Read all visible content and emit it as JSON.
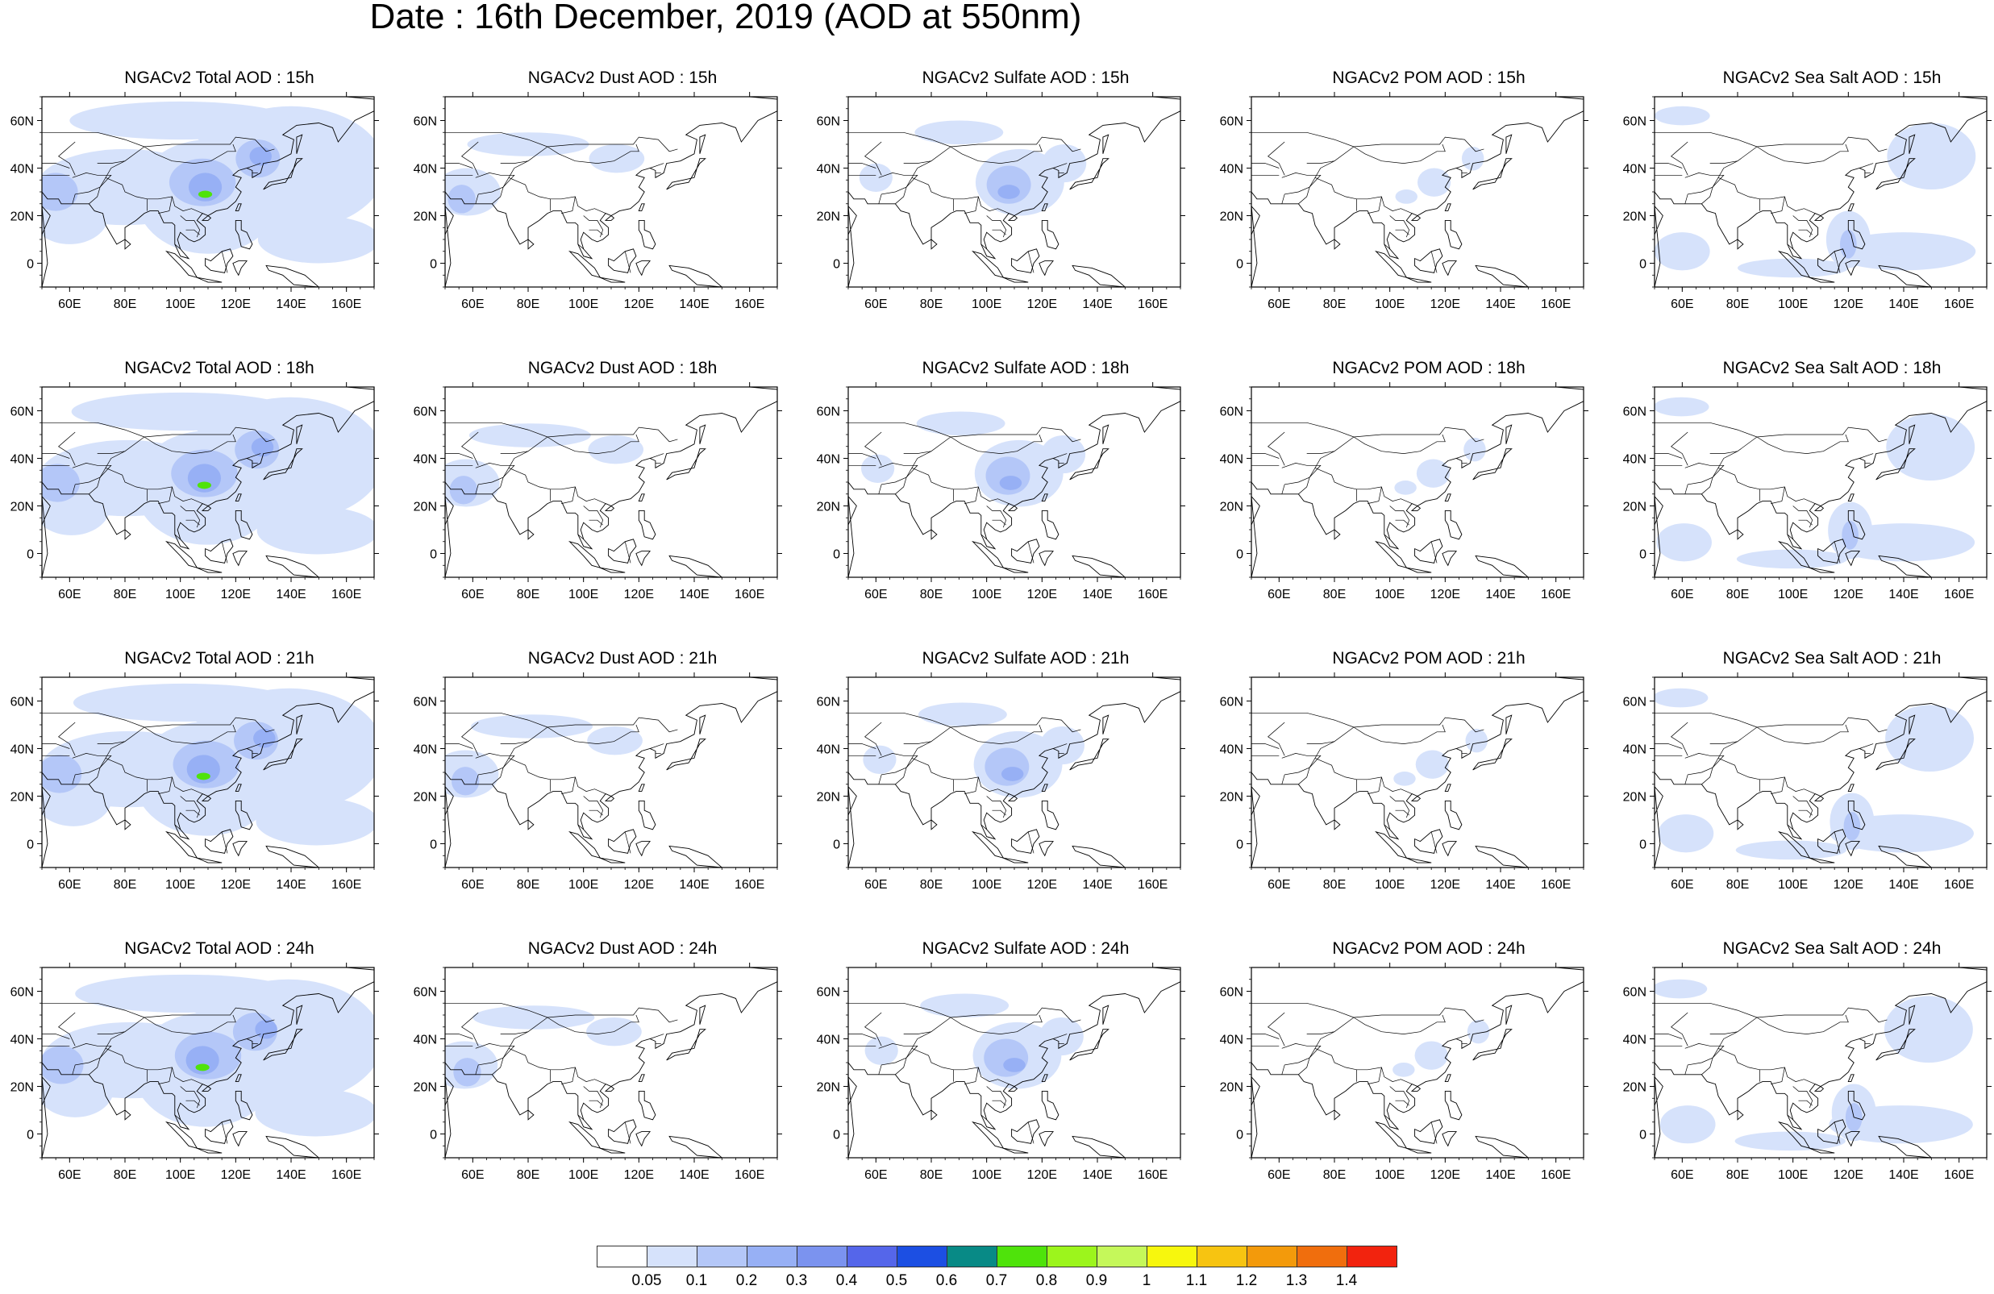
{
  "title": "Date : 16th December, 2019 (AOD at 550nm)",
  "lon_ticks": [
    "60E",
    "80E",
    "100E",
    "120E",
    "140E",
    "160E"
  ],
  "lat_ticks": [
    "60N",
    "40N",
    "20N",
    "0"
  ],
  "panels": [
    {
      "title": "NGACv2 Total AOD : 15h",
      "species": "total",
      "hour": 15
    },
    {
      "title": "NGACv2 Dust AOD : 15h",
      "species": "dust",
      "hour": 15
    },
    {
      "title": "NGACv2 Sulfate AOD : 15h",
      "species": "sulfate",
      "hour": 15
    },
    {
      "title": "NGACv2 POM AOD : 15h",
      "species": "pom",
      "hour": 15
    },
    {
      "title": "NGACv2 Sea Salt AOD : 15h",
      "species": "seasalt",
      "hour": 15
    },
    {
      "title": "NGACv2 Total AOD : 18h",
      "species": "total",
      "hour": 18
    },
    {
      "title": "NGACv2 Dust AOD : 18h",
      "species": "dust",
      "hour": 18
    },
    {
      "title": "NGACv2 Sulfate AOD : 18h",
      "species": "sulfate",
      "hour": 18
    },
    {
      "title": "NGACv2 POM AOD : 18h",
      "species": "pom",
      "hour": 18
    },
    {
      "title": "NGACv2 Sea Salt AOD : 18h",
      "species": "seasalt",
      "hour": 18
    },
    {
      "title": "NGACv2 Total AOD : 21h",
      "species": "total",
      "hour": 21
    },
    {
      "title": "NGACv2 Dust AOD : 21h",
      "species": "dust",
      "hour": 21
    },
    {
      "title": "NGACv2 Sulfate AOD : 21h",
      "species": "sulfate",
      "hour": 21
    },
    {
      "title": "NGACv2 POM AOD : 21h",
      "species": "pom",
      "hour": 21
    },
    {
      "title": "NGACv2 Sea Salt AOD : 21h",
      "species": "seasalt",
      "hour": 21
    },
    {
      "title": "NGACv2 Total AOD : 24h",
      "species": "total",
      "hour": 24
    },
    {
      "title": "NGACv2 Dust AOD : 24h",
      "species": "dust",
      "hour": 24
    },
    {
      "title": "NGACv2 Sulfate AOD : 24h",
      "species": "sulfate",
      "hour": 24
    },
    {
      "title": "NGACv2 POM AOD : 24h",
      "species": "pom",
      "hour": 24
    },
    {
      "title": "NGACv2 Sea Salt  AOD : 24h",
      "species": "seasalt",
      "hour": 24
    }
  ],
  "colorbar": {
    "labels": [
      "0.05",
      "0.1",
      "0.2",
      "0.3",
      "0.4",
      "0.5",
      "0.6",
      "0.7",
      "0.8",
      "0.9",
      "1",
      "1.1",
      "1.2",
      "1.3",
      "1.4"
    ],
    "colors": [
      "#ffffff",
      "#d6e2fb",
      "#b4c7f8",
      "#97b0f5",
      "#7b93ef",
      "#5566ea",
      "#1c4fe3",
      "#088a86",
      "#4fe30b",
      "#9cf51c",
      "#c5f85a",
      "#f7f70d",
      "#f7c411",
      "#f39a0b",
      "#f06e0d",
      "#f2230e"
    ]
  },
  "map_regions": [
    {
      "species": "total",
      "color": "#d6e2fb",
      "description": "widespread light background"
    },
    {
      "species": "total",
      "color": "#97b0f5",
      "description": "East China / NE Asia maximum"
    },
    {
      "species": "total",
      "color": "#4fe30b",
      "description": "peak over central China"
    }
  ]
}
